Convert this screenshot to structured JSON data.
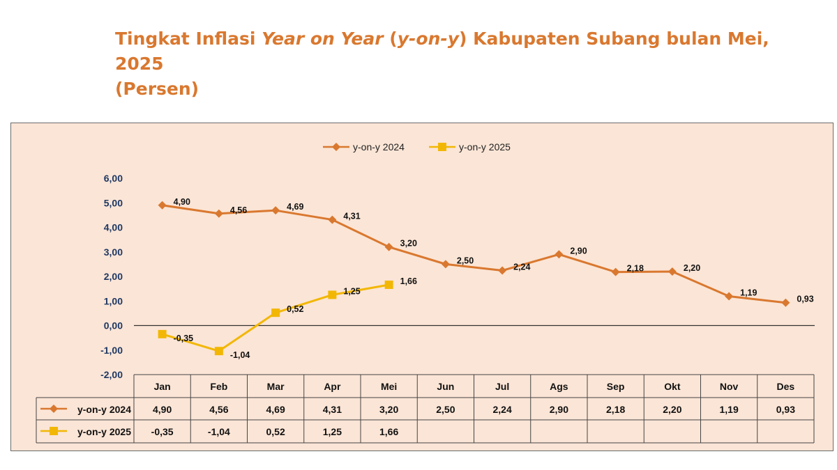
{
  "title": {
    "part1": "Tingkat Inflasi ",
    "part2_italic": "Year on Year",
    "part3": " (",
    "part4_italic": "y-on-y",
    "part5": ") Kabupaten Subang bulan Mei, 2025",
    "line2": "(Persen)"
  },
  "chart_data": {
    "type": "line",
    "categories": [
      "Jan",
      "Feb",
      "Mar",
      "Apr",
      "Mei",
      "Jun",
      "Jul",
      "Ags",
      "Sep",
      "Okt",
      "Nov",
      "Des"
    ],
    "series": [
      {
        "name": "y-on-y 2024",
        "color": "#d9782f",
        "marker": "diamond",
        "values": [
          4.9,
          4.56,
          4.69,
          4.31,
          3.2,
          2.5,
          2.24,
          2.9,
          2.18,
          2.2,
          1.19,
          0.93
        ],
        "labels": [
          "4,90",
          "4,56",
          "4,69",
          "4,31",
          "3,20",
          "2,50",
          "2,24",
          "2,90",
          "2,18",
          "2,20",
          "1,19",
          "0,93"
        ]
      },
      {
        "name": "y-on-y 2025",
        "color": "#f2b705",
        "marker": "square",
        "values": [
          -0.35,
          -1.04,
          0.52,
          1.25,
          1.66,
          null,
          null,
          null,
          null,
          null,
          null,
          null
        ],
        "labels": [
          "-0,35",
          "-1,04",
          "0,52",
          "1,25",
          "1,66",
          "",
          "",
          "",
          "",
          "",
          "",
          ""
        ]
      }
    ],
    "ylim": [
      -2,
      6
    ],
    "yticks": [
      6,
      5,
      4,
      3,
      2,
      1,
      0,
      -1,
      -2
    ],
    "ytick_labels": [
      "6,00",
      "5,00",
      "4,00",
      "3,00",
      "2,00",
      "1,00",
      "0,00",
      "-1,00",
      "-2,00"
    ],
    "legend_position": "top-center",
    "grid": false,
    "data_table": true
  }
}
